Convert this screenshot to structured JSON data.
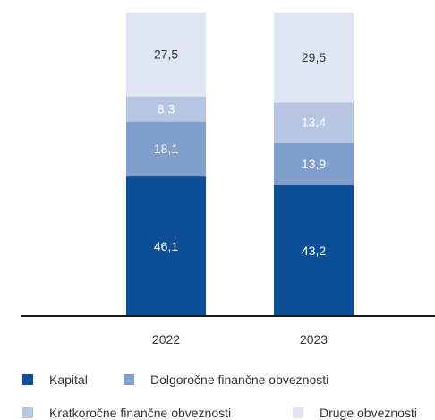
{
  "chart_data": {
    "type": "bar",
    "stacked": true,
    "categories": [
      "2022",
      "2023"
    ],
    "series": [
      {
        "name": "Kapital",
        "values": [
          46.1,
          43.2
        ],
        "color": "#0b4f97",
        "label_color": "#ffffff"
      },
      {
        "name": "Dolgoročne finančne obveznosti",
        "values": [
          18.1,
          13.9
        ],
        "color": "#819fcd",
        "label_color": "#ffffff"
      },
      {
        "name": "Kratkoročne finančne obveznosti",
        "values": [
          8.3,
          13.4
        ],
        "color": "#b6c5e2",
        "label_color": "#ffffff"
      },
      {
        "name": "Druge obveznosti",
        "values": [
          27.5,
          29.5
        ],
        "color": "#dfe5f2",
        "label_color": "#333333"
      }
    ],
    "data_labels": [
      [
        "46,1",
        "43,2"
      ],
      [
        "18,1",
        "13,9"
      ],
      [
        "8,3",
        "13,4"
      ],
      [
        "27,5",
        "29,5"
      ]
    ],
    "ylim": [
      0,
      100
    ],
    "grid": false,
    "legend_position": "bottom"
  }
}
